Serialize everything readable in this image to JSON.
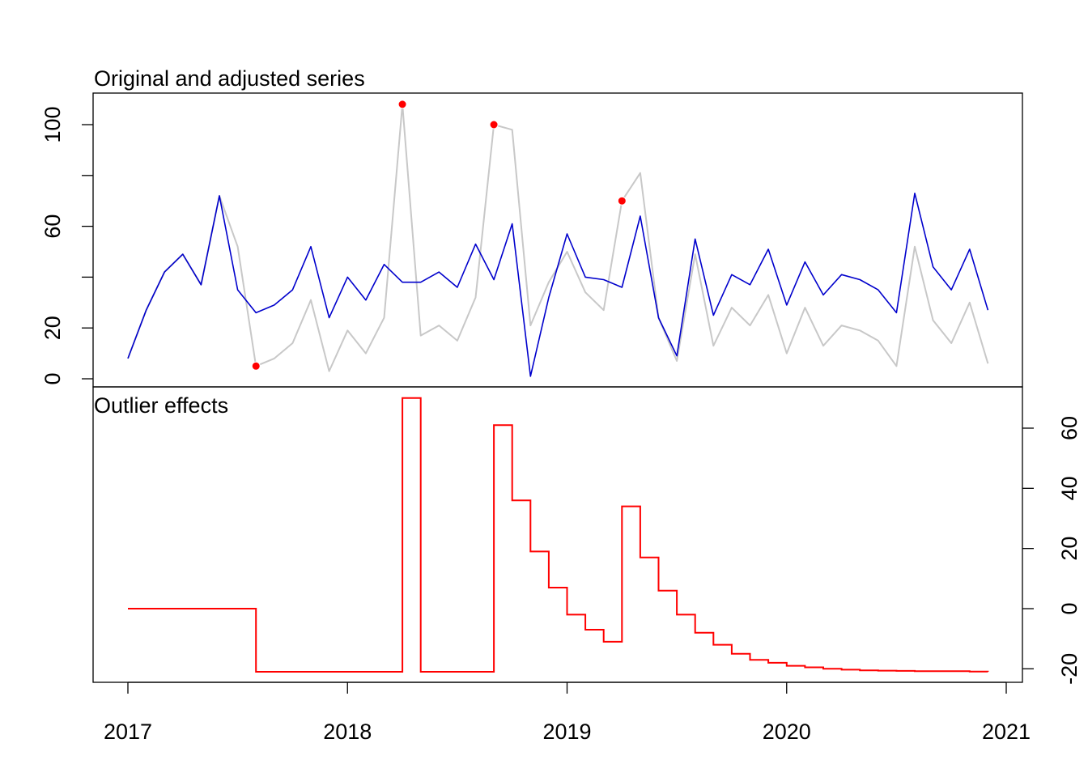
{
  "chart_data": [
    {
      "type": "line",
      "title": "Original and adjusted series",
      "xlabel": "",
      "ylabel": "",
      "xlim": [
        2017,
        2021
      ],
      "ylim": [
        0,
        110
      ],
      "grid": false,
      "x_ticks": [
        "2017",
        "2018",
        "2019",
        "2020",
        "2021"
      ],
      "y_ticks": [
        "0",
        "20",
        "60",
        "100"
      ],
      "x_start": 2017,
      "x_step_months": 1,
      "series": [
        {
          "role": "original",
          "color": "#c8c8c8",
          "values": [
            8,
            27,
            42,
            49,
            37,
            72,
            52,
            5,
            8,
            14,
            31,
            3,
            19,
            10,
            24,
            108,
            17,
            21,
            15,
            32,
            100,
            98,
            21,
            38,
            50,
            34,
            27,
            70,
            81,
            24,
            7,
            49,
            13,
            28,
            21,
            33,
            10,
            28,
            13,
            21,
            19,
            15,
            5,
            52,
            23,
            14,
            30,
            6
          ]
        },
        {
          "role": "adjusted",
          "color": "#0000cc",
          "values": [
            8,
            27,
            42,
            49,
            37,
            72,
            35,
            26,
            29,
            35,
            52,
            24,
            40,
            31,
            45,
            38,
            38,
            42,
            36,
            53,
            39,
            61,
            1,
            32,
            57,
            40,
            39,
            36,
            64,
            24,
            9,
            55,
            25,
            41,
            37,
            51,
            29,
            46,
            33,
            41,
            39,
            35,
            26,
            73,
            44,
            35,
            51,
            27
          ]
        }
      ],
      "outlier_points": {
        "color": "#ff0000",
        "x_index": [
          7,
          15,
          20,
          27
        ],
        "values": [
          5,
          108,
          100,
          70
        ]
      }
    },
    {
      "type": "line",
      "style": "step",
      "title": "Outlier effects",
      "xlabel": "",
      "ylabel": "",
      "xlim": [
        2017,
        2021
      ],
      "ylim": [
        -22,
        70
      ],
      "grid": false,
      "y_axis_side": "right",
      "y_ticks": [
        "-20",
        "0",
        "20",
        "40",
        "60"
      ],
      "series": [
        {
          "color": "#ff0000",
          "values": [
            0,
            0,
            0,
            0,
            0,
            0,
            0,
            -21,
            -21,
            -21,
            -21,
            -21,
            -21,
            -21,
            -21,
            70,
            -21,
            -21,
            -21,
            -21,
            61,
            36,
            19,
            7,
            -2,
            -7,
            -11,
            34,
            17,
            6,
            -2,
            -8,
            -12,
            -15,
            -17,
            -18,
            -19,
            -19.5,
            -20,
            -20.3,
            -20.5,
            -20.6,
            -20.7,
            -20.8,
            -20.8,
            -20.8,
            -20.9,
            -21
          ]
        }
      ]
    }
  ]
}
